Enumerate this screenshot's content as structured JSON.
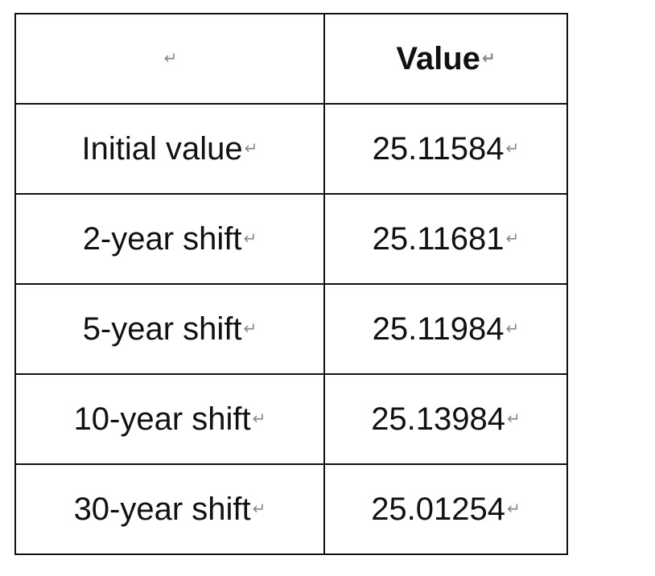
{
  "table": {
    "header": {
      "label": "",
      "value": "Value"
    },
    "paragraph_mark": "↵",
    "rows": [
      {
        "label": "Initial value",
        "value": "25.11584"
      },
      {
        "label": "2-year shift",
        "value": "25.11681"
      },
      {
        "label": "5-year shift",
        "value": "25.11984"
      },
      {
        "label": "10-year shift",
        "value": "25.13984"
      },
      {
        "label": "30-year shift",
        "value": "25.01254"
      }
    ]
  }
}
